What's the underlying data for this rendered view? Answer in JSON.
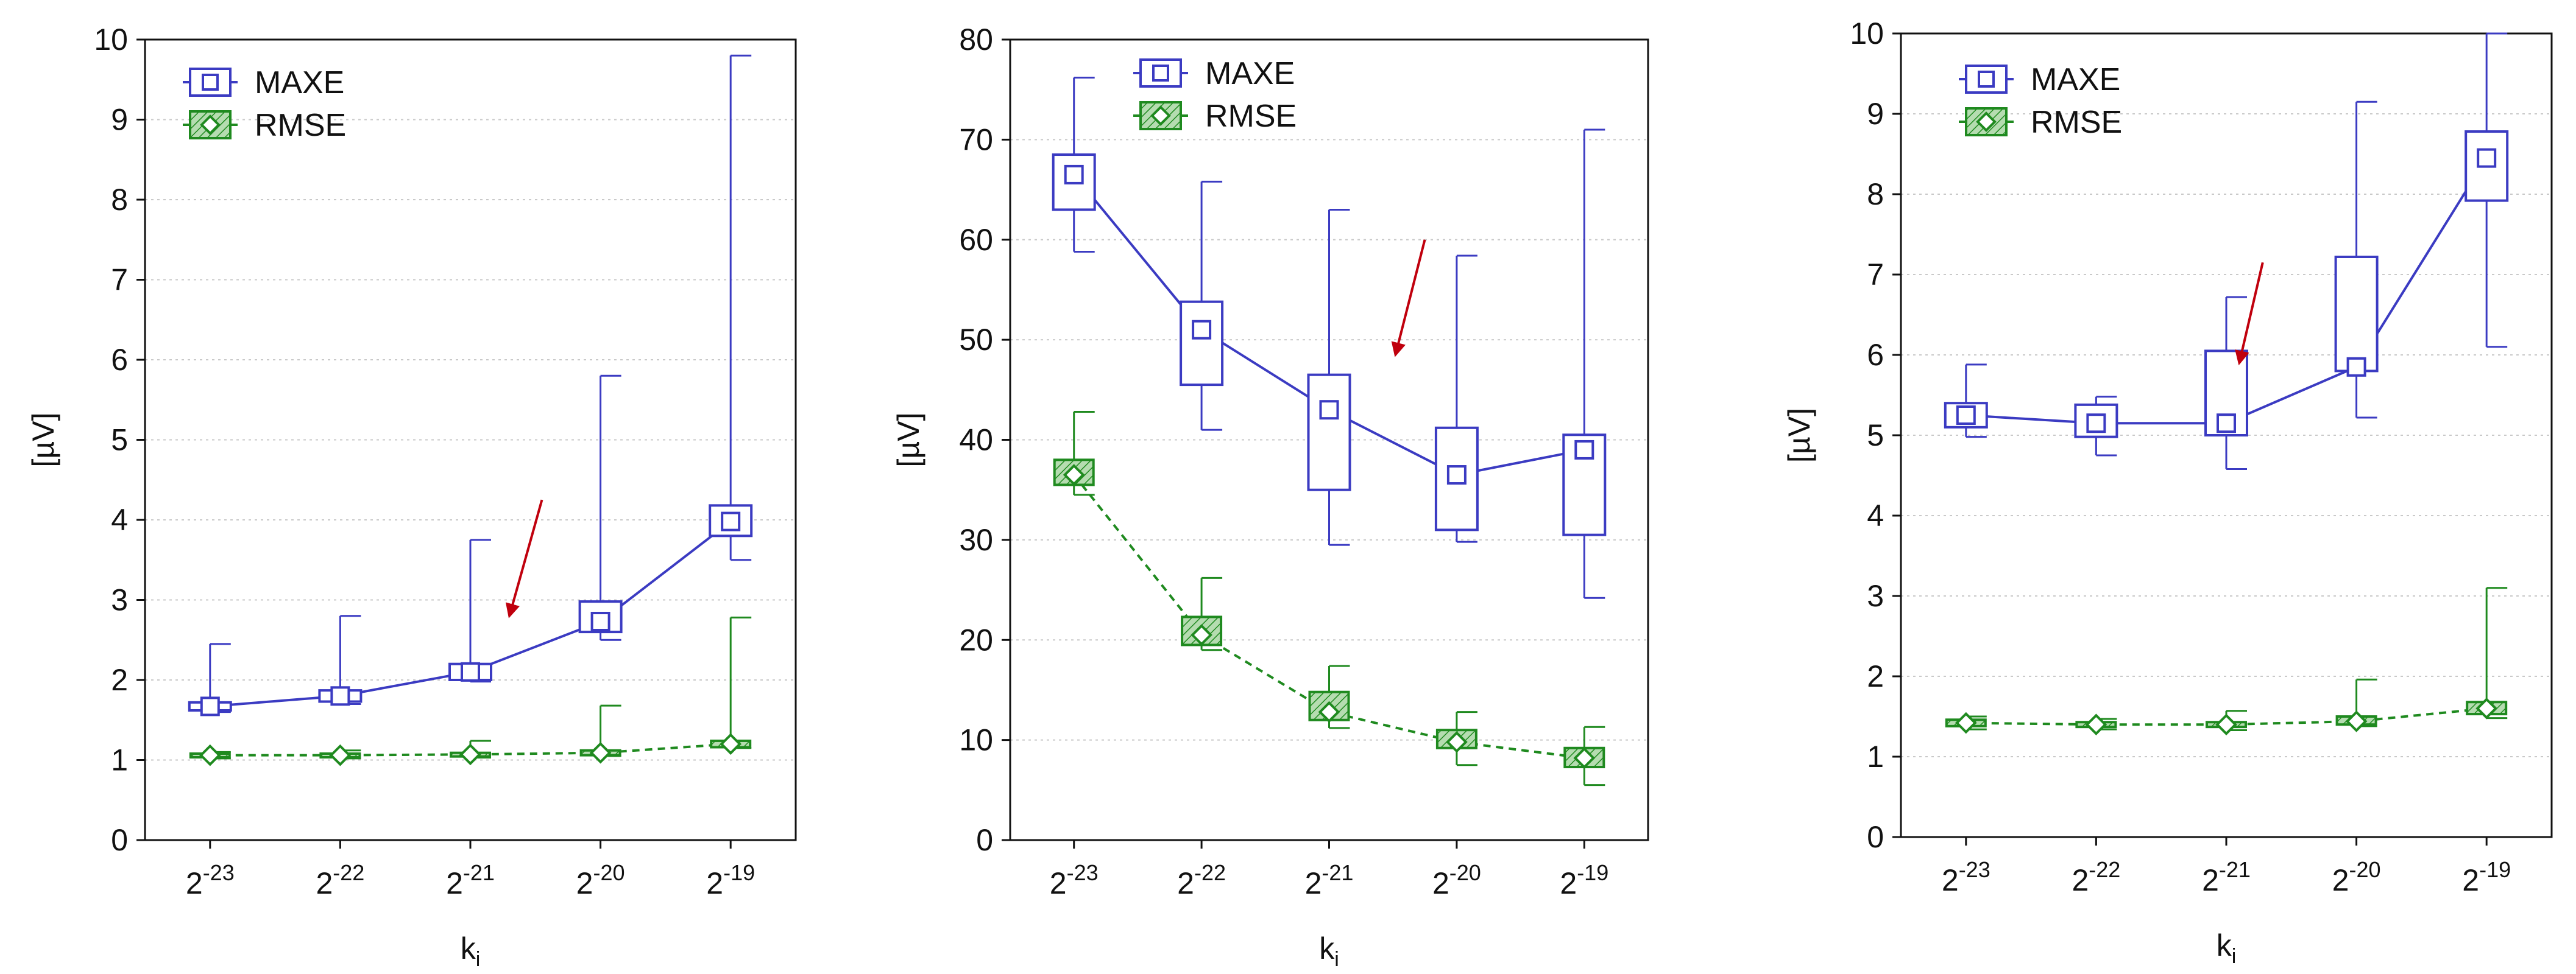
{
  "colors": {
    "maxe": "#3b3bc2",
    "rmse": "#1f8a1f",
    "rmse_fill": "#b5dcb0",
    "arrow": "#c0000d",
    "grid": "#c9c9c9",
    "axis": "#111111"
  },
  "chart_data": [
    {
      "type": "box",
      "title": "",
      "xlabel": "k_i",
      "ylabel": "[µV]",
      "ylim": [
        0,
        10
      ],
      "yticks": [
        "0",
        "1",
        "2",
        "3",
        "4",
        "5",
        "6",
        "7",
        "8",
        "9",
        "10"
      ],
      "categories": [
        "2^-23",
        "2^-22",
        "2^-21",
        "2^-20",
        "2^-19"
      ],
      "category_labels": [
        {
          "base": "2",
          "exp": "-23"
        },
        {
          "base": "2",
          "exp": "-22"
        },
        {
          "base": "2",
          "exp": "-21"
        },
        {
          "base": "2",
          "exp": "-20"
        },
        {
          "base": "2",
          "exp": "-19"
        }
      ],
      "grid": true,
      "legend": "top-left",
      "arrow": {
        "from": [
          3.55,
          4.25
        ],
        "to": [
          3.3,
          2.8
        ]
      },
      "series": [
        {
          "name": "MAXE",
          "line": "solid",
          "marker": "square",
          "median": [
            1.67,
            1.8,
            2.1,
            2.73,
            3.98
          ],
          "q1": [
            1.62,
            1.73,
            2.0,
            2.6,
            3.8
          ],
          "q3": [
            1.72,
            1.87,
            2.2,
            2.98,
            4.18
          ],
          "min": [
            1.6,
            1.7,
            1.98,
            2.5,
            3.5
          ],
          "max": [
            2.45,
            2.8,
            3.75,
            5.8,
            9.8
          ]
        },
        {
          "name": "RMSE",
          "line": "dashed",
          "marker": "diamond",
          "median": [
            1.06,
            1.06,
            1.07,
            1.09,
            1.2
          ],
          "q1": [
            1.04,
            1.04,
            1.05,
            1.06,
            1.16
          ],
          "q3": [
            1.08,
            1.08,
            1.09,
            1.12,
            1.24
          ],
          "min": [
            1.02,
            1.02,
            1.03,
            1.05,
            1.15
          ],
          "max": [
            1.1,
            1.12,
            1.24,
            1.68,
            2.78
          ]
        }
      ]
    },
    {
      "type": "box",
      "title": "",
      "xlabel": "k_i",
      "ylabel": "[µV]",
      "ylim": [
        0,
        80
      ],
      "yticks": [
        "0",
        "10",
        "20",
        "30",
        "40",
        "50",
        "60",
        "70",
        "80"
      ],
      "categories": [
        "2^-23",
        "2^-22",
        "2^-21",
        "2^-20",
        "2^-19"
      ],
      "category_labels": [
        {
          "base": "2",
          "exp": "-23"
        },
        {
          "base": "2",
          "exp": "-22"
        },
        {
          "base": "2",
          "exp": "-21"
        },
        {
          "base": "2",
          "exp": "-20"
        },
        {
          "base": "2",
          "exp": "-19"
        }
      ],
      "grid": true,
      "legend": "top-center",
      "arrow": {
        "from": [
          3.75,
          60.0
        ],
        "to": [
          3.52,
          48.5
        ]
      },
      "series": [
        {
          "name": "MAXE",
          "line": "solid",
          "marker": "square",
          "median": [
            66.5,
            51.0,
            43.0,
            36.5,
            39.0
          ],
          "q1": [
            63.0,
            45.5,
            35.0,
            31.0,
            30.5
          ],
          "q3": [
            68.5,
            53.8,
            46.5,
            41.2,
            40.5
          ],
          "min": [
            58.8,
            41.0,
            29.5,
            29.8,
            24.2
          ],
          "max": [
            76.2,
            65.8,
            63.0,
            58.4,
            71.0
          ]
        },
        {
          "name": "RMSE",
          "line": "dashed",
          "marker": "diamond",
          "median": [
            36.5,
            20.5,
            12.8,
            9.8,
            8.2
          ],
          "q1": [
            35.5,
            19.5,
            12.0,
            9.2,
            7.3
          ],
          "q3": [
            38.0,
            22.3,
            14.8,
            11.0,
            9.2
          ],
          "min": [
            34.5,
            19.0,
            11.2,
            7.5,
            5.5
          ],
          "max": [
            42.8,
            26.2,
            17.4,
            12.8,
            11.3
          ]
        }
      ]
    },
    {
      "type": "box",
      "title": "",
      "xlabel": "k_i",
      "ylabel": "[µV]",
      "ylim": [
        0,
        10
      ],
      "yticks": [
        "0",
        "1",
        "2",
        "3",
        "4",
        "5",
        "6",
        "7",
        "8",
        "9",
        "10"
      ],
      "categories": [
        "2^-23",
        "2^-22",
        "2^-21",
        "2^-20",
        "2^-19"
      ],
      "category_labels": [
        {
          "base": "2",
          "exp": "-23"
        },
        {
          "base": "2",
          "exp": "-22"
        },
        {
          "base": "2",
          "exp": "-21"
        },
        {
          "base": "2",
          "exp": "-20"
        },
        {
          "base": "2",
          "exp": "-19"
        }
      ],
      "grid": true,
      "legend": "top-left",
      "arrow": {
        "from": [
          3.28,
          7.15
        ],
        "to": [
          3.1,
          5.9
        ]
      },
      "series": [
        {
          "name": "MAXE",
          "line": "solid",
          "marker": "square",
          "median": [
            5.25,
            5.15,
            5.15,
            5.85,
            8.45
          ],
          "q1": [
            5.1,
            4.98,
            5.0,
            5.8,
            7.92
          ],
          "q3": [
            5.4,
            5.38,
            6.05,
            7.22,
            8.78
          ],
          "min": [
            4.98,
            4.75,
            4.58,
            5.22,
            6.1
          ],
          "max": [
            5.88,
            5.48,
            6.72,
            9.15,
            10.0
          ]
        },
        {
          "name": "RMSE",
          "line": "dashed",
          "marker": "diamond",
          "median": [
            1.42,
            1.4,
            1.4,
            1.44,
            1.6
          ],
          "q1": [
            1.38,
            1.37,
            1.37,
            1.4,
            1.53
          ],
          "q3": [
            1.46,
            1.43,
            1.43,
            1.5,
            1.68
          ],
          "min": [
            1.34,
            1.34,
            1.33,
            1.38,
            1.48
          ],
          "max": [
            1.5,
            1.47,
            1.57,
            1.96,
            3.1
          ]
        }
      ]
    }
  ]
}
